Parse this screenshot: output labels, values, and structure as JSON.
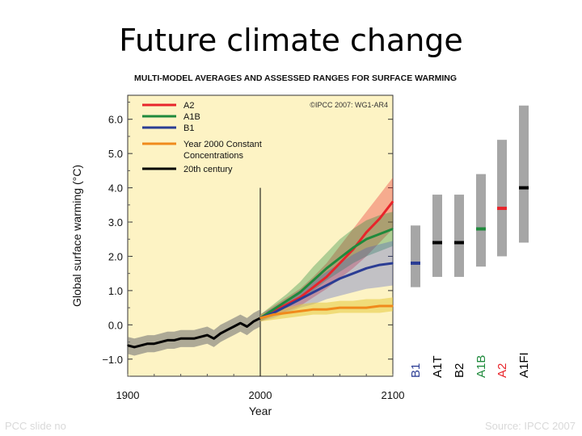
{
  "slide": {
    "title": "Future climate change",
    "footer_left": "PCC slide no",
    "footer_right": "Source: IPCC 2007"
  },
  "chart_data": {
    "type": "line",
    "title": "Multi-Model Averages and Assessed Ranges for Surface Warming",
    "credit": "©IPCC 2007: WG1-AR4",
    "xlabel": "Year",
    "ylabel": "Global surface warming (°C)",
    "xlim": [
      1900,
      2100
    ],
    "ylim": [
      -1.5,
      6.7
    ],
    "x_ticks": [
      1900,
      2000,
      2100
    ],
    "y_ticks": [
      -1.0,
      0.0,
      1.0,
      2.0,
      3.0,
      4.0,
      5.0,
      6.0
    ],
    "y_tick_labels": [
      "−1.0",
      "0.0",
      "1.0",
      "2.0",
      "3.0",
      "4.0",
      "5.0",
      "6.0"
    ],
    "legend": [
      "A2",
      "A1B",
      "B1",
      "Year 2000 Constant",
      "Concentrations",
      "20th century"
    ],
    "legend_position": "top-left",
    "colors": {
      "A2": "#e8252b",
      "A1B": "#1f8a3c",
      "B1": "#2b3d94",
      "Constant": "#f08a1c",
      "20th century": "#000000",
      "plot_bg": "#fdf3c4",
      "bar": "#a6a6a6"
    },
    "series": [
      {
        "name": "20th century",
        "x": [
          1900,
          1905,
          1910,
          1915,
          1920,
          1925,
          1930,
          1935,
          1940,
          1945,
          1950,
          1955,
          1960,
          1965,
          1970,
          1975,
          1980,
          1985,
          1990,
          1995,
          2000
        ],
        "values": [
          -0.6,
          -0.65,
          -0.6,
          -0.55,
          -0.55,
          -0.5,
          -0.45,
          -0.45,
          -0.4,
          -0.4,
          -0.4,
          -0.35,
          -0.3,
          -0.4,
          -0.25,
          -0.15,
          -0.05,
          0.05,
          -0.05,
          0.1,
          0.2
        ],
        "band": 0.25
      },
      {
        "name": "A2",
        "x": [
          2000,
          2010,
          2020,
          2030,
          2040,
          2050,
          2060,
          2070,
          2080,
          2090,
          2100
        ],
        "values": [
          0.2,
          0.4,
          0.6,
          0.8,
          1.1,
          1.4,
          1.8,
          2.2,
          2.7,
          3.1,
          3.6
        ],
        "band_low": [
          0.1,
          0.25,
          0.4,
          0.55,
          0.8,
          1.05,
          1.35,
          1.65,
          2.0,
          2.4,
          2.8
        ],
        "band_high": [
          0.3,
          0.55,
          0.8,
          1.05,
          1.4,
          1.8,
          2.3,
          2.8,
          3.3,
          3.8,
          4.3
        ]
      },
      {
        "name": "A1B",
        "x": [
          2000,
          2010,
          2020,
          2030,
          2040,
          2050,
          2060,
          2070,
          2080,
          2090,
          2100
        ],
        "values": [
          0.2,
          0.45,
          0.7,
          0.95,
          1.3,
          1.65,
          1.95,
          2.25,
          2.5,
          2.65,
          2.8
        ],
        "band_low": [
          0.1,
          0.3,
          0.5,
          0.7,
          1.0,
          1.3,
          1.55,
          1.8,
          2.0,
          2.15,
          2.3
        ],
        "band_high": [
          0.3,
          0.6,
          0.9,
          1.25,
          1.7,
          2.1,
          2.5,
          2.8,
          3.05,
          3.2,
          3.3
        ]
      },
      {
        "name": "B1",
        "x": [
          2000,
          2010,
          2020,
          2030,
          2040,
          2050,
          2060,
          2070,
          2080,
          2090,
          2100
        ],
        "values": [
          0.2,
          0.35,
          0.55,
          0.75,
          0.95,
          1.15,
          1.35,
          1.5,
          1.65,
          1.75,
          1.8
        ],
        "band_low": [
          0.1,
          0.2,
          0.35,
          0.5,
          0.6,
          0.75,
          0.85,
          0.95,
          1.05,
          1.1,
          1.15
        ],
        "band_high": [
          0.3,
          0.5,
          0.75,
          1.0,
          1.3,
          1.55,
          1.8,
          2.05,
          2.25,
          2.35,
          2.45
        ]
      },
      {
        "name": "Year 2000 Constant Concentrations",
        "x": [
          2000,
          2010,
          2020,
          2030,
          2040,
          2050,
          2060,
          2070,
          2080,
          2090,
          2100
        ],
        "values": [
          0.2,
          0.3,
          0.35,
          0.4,
          0.45,
          0.45,
          0.5,
          0.5,
          0.5,
          0.55,
          0.55
        ],
        "band_low": [
          0.1,
          0.15,
          0.2,
          0.25,
          0.3,
          0.3,
          0.35,
          0.35,
          0.35,
          0.35,
          0.4
        ],
        "band_high": [
          0.3,
          0.45,
          0.5,
          0.6,
          0.65,
          0.65,
          0.7,
          0.7,
          0.75,
          0.75,
          0.8
        ]
      }
    ],
    "vline_year": 2000,
    "ranges": [
      {
        "label": "B1",
        "low": 1.1,
        "high": 2.9,
        "best": 1.8,
        "marker": "#2b3d94"
      },
      {
        "label": "A1T",
        "low": 1.4,
        "high": 3.8,
        "best": 2.4,
        "marker": "#000000"
      },
      {
        "label": "B2",
        "low": 1.4,
        "high": 3.8,
        "best": 2.4,
        "marker": "#000000"
      },
      {
        "label": "A1B",
        "low": 1.7,
        "high": 4.4,
        "best": 2.8,
        "marker": "#1f8a3c"
      },
      {
        "label": "A2",
        "low": 2.0,
        "high": 5.4,
        "best": 3.4,
        "marker": "#e8252b"
      },
      {
        "label": "A1FI",
        "low": 2.4,
        "high": 6.4,
        "best": 4.0,
        "marker": "#000000"
      }
    ],
    "range_label_colors": {
      "B1": "#2b3d94",
      "A1T": "#000000",
      "B2": "#000000",
      "A1B": "#1f8a3c",
      "A2": "#e8252b",
      "A1FI": "#000000"
    }
  }
}
